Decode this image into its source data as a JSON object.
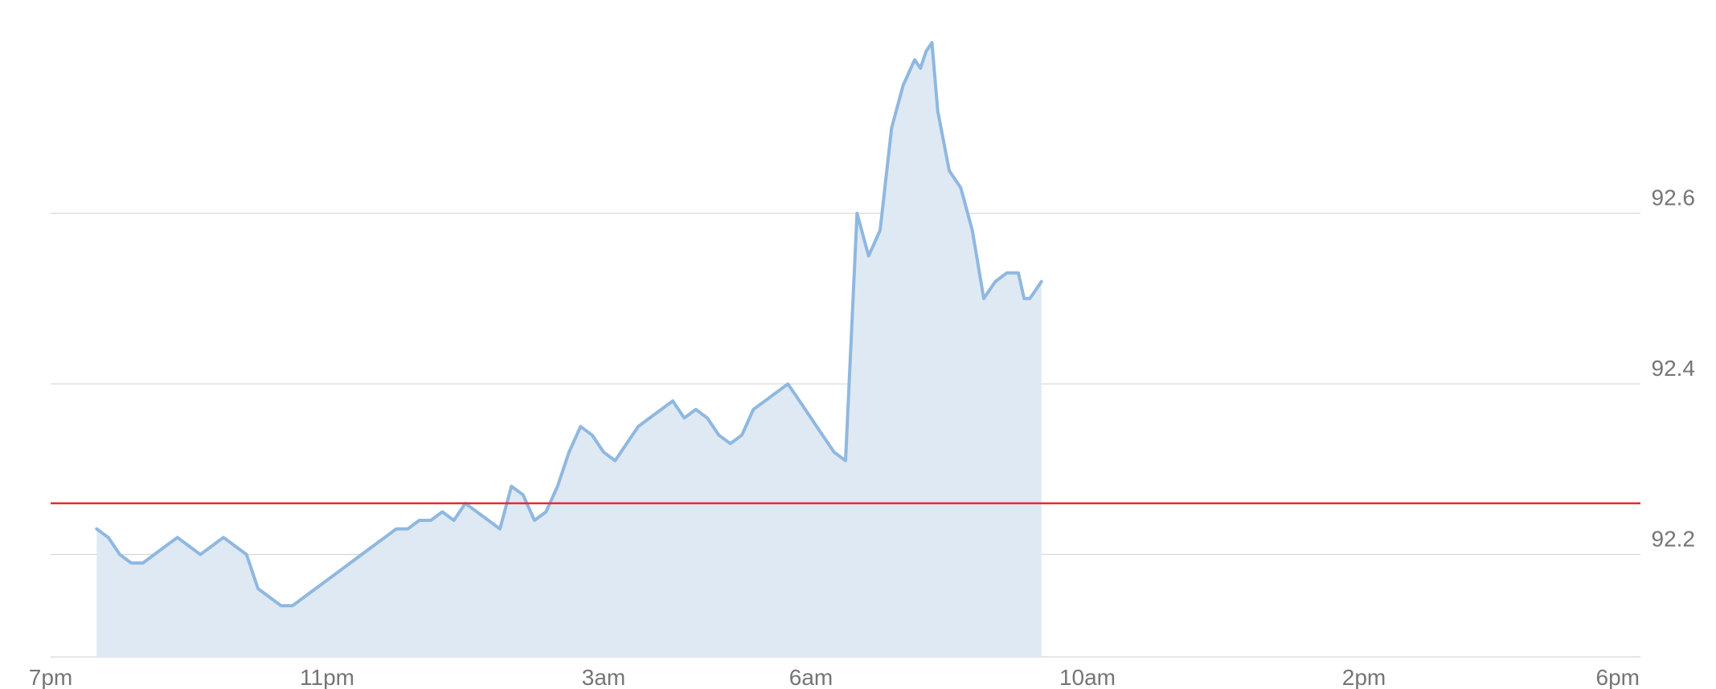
{
  "chart_data": {
    "type": "area",
    "title": "",
    "xlabel": "",
    "ylabel": "",
    "x_ticks": [
      "7pm",
      "11pm",
      "3am",
      "6am",
      "10am",
      "2pm",
      "6pm"
    ],
    "y_ticks": [
      92.2,
      92.4,
      92.6
    ],
    "ylim": [
      92.08,
      92.85
    ],
    "grid": "horizontal",
    "reference_line": {
      "value": 92.26,
      "color": "#e0312c"
    },
    "colors": {
      "line": "#8fb8e0",
      "fill": "#dfe9f4",
      "grid": "#d7d7d7",
      "tick_text": "#757575"
    },
    "series": [
      {
        "x": [
          "7:40pm",
          "7:50pm",
          "8:00pm",
          "8:10pm",
          "8:20pm",
          "8:30pm",
          "8:40pm",
          "8:50pm",
          "9:00pm",
          "9:10pm",
          "9:20pm",
          "9:30pm",
          "9:40pm",
          "9:50pm",
          "10:00pm",
          "10:10pm",
          "10:20pm",
          "10:30pm",
          "10:40pm",
          "10:50pm",
          "11:00pm",
          "11:10pm",
          "11:20pm",
          "11:30pm",
          "11:40pm",
          "11:50pm",
          "12:00am",
          "12:10am",
          "12:20am",
          "12:30am",
          "12:40am",
          "12:50am",
          "1:00am",
          "1:10am",
          "1:20am",
          "1:30am",
          "1:40am",
          "1:50am",
          "2:00am",
          "2:10am",
          "2:20am",
          "2:30am",
          "2:40am",
          "2:50am",
          "3:00am",
          "3:10am",
          "3:20am",
          "3:30am",
          "3:40am",
          "3:50am",
          "4:00am",
          "4:10am",
          "4:20am",
          "4:30am",
          "4:40am",
          "4:50am",
          "5:00am",
          "5:10am",
          "5:20am",
          "5:30am",
          "5:40am",
          "5:50am",
          "6:00am",
          "6:10am",
          "6:20am",
          "6:30am",
          "6:40am",
          "6:50am",
          "7:00am",
          "7:10am",
          "7:20am",
          "7:30am",
          "7:35am",
          "7:40am",
          "7:45am",
          "7:50am",
          "8:00am",
          "8:10am",
          "8:20am",
          "8:30am",
          "8:40am",
          "8:50am",
          "9:00am",
          "9:05am",
          "9:10am",
          "9:15am",
          "9:20am"
        ],
        "values": [
          92.23,
          92.22,
          92.2,
          92.19,
          92.19,
          92.2,
          92.21,
          92.22,
          92.21,
          92.2,
          92.21,
          92.22,
          92.21,
          92.2,
          92.16,
          92.15,
          92.14,
          92.14,
          92.15,
          92.16,
          92.17,
          92.18,
          92.19,
          92.2,
          92.21,
          92.22,
          92.23,
          92.23,
          92.24,
          92.24,
          92.25,
          92.24,
          92.26,
          92.25,
          92.24,
          92.23,
          92.28,
          92.27,
          92.24,
          92.25,
          92.28,
          92.32,
          92.35,
          92.34,
          92.32,
          92.31,
          92.33,
          92.35,
          92.36,
          92.37,
          92.38,
          92.36,
          92.37,
          92.36,
          92.34,
          92.33,
          92.34,
          92.37,
          92.38,
          92.39,
          92.4,
          92.38,
          92.36,
          92.34,
          92.32,
          92.31,
          92.6,
          92.55,
          92.58,
          92.7,
          92.75,
          92.78,
          92.77,
          92.79,
          92.8,
          92.72,
          92.65,
          92.63,
          92.58,
          92.5,
          92.52,
          92.53,
          92.53,
          92.5,
          92.5,
          92.51,
          92.52
        ]
      }
    ]
  }
}
